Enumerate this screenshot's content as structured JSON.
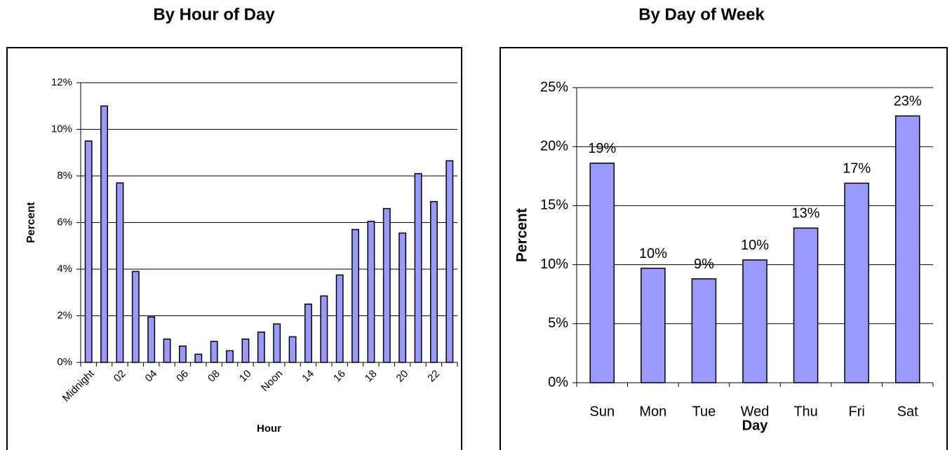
{
  "chart_data": [
    {
      "type": "bar",
      "title": "By Hour of Day",
      "x_label": "Hour",
      "y_label": "Percent",
      "categories": [
        "Midnight",
        null,
        "02",
        null,
        "04",
        null,
        "06",
        null,
        "08",
        null,
        "10",
        null,
        "Noon",
        null,
        "14",
        null,
        "16",
        null,
        "18",
        null,
        "20",
        null,
        "22",
        null
      ],
      "values": [
        9.5,
        11,
        7.7,
        3.9,
        1.95,
        1.0,
        0.7,
        0.35,
        0.9,
        0.5,
        1.0,
        1.3,
        1.65,
        1.1,
        2.5,
        2.85,
        3.75,
        5.7,
        6.05,
        6.6,
        5.55,
        8.1,
        6.9,
        8.65
      ],
      "color": "#9999ff",
      "ylim": [
        0,
        12
      ],
      "yticks": [
        {
          "value": 0,
          "label": "0%"
        },
        {
          "value": 2,
          "label": "2%"
        },
        {
          "value": 4,
          "label": "4%"
        },
        {
          "value": 6,
          "label": "6%"
        },
        {
          "value": 8,
          "label": "8%"
        },
        {
          "value": 10,
          "label": "10%"
        },
        {
          "value": 12,
          "label": "12%"
        }
      ],
      "grid": true
    },
    {
      "type": "bar",
      "title": "By Day of Week",
      "x_label": "Day",
      "y_label": "Percent",
      "categories": [
        "Sun",
        "Mon",
        "Tue",
        "Wed",
        "Thu",
        "Fri",
        "Sat"
      ],
      "values": [
        18.6,
        9.7,
        8.8,
        10.4,
        13.1,
        16.9,
        22.6
      ],
      "value_labels": [
        "19%",
        "10%",
        "9%",
        "10%",
        "13%",
        "17%",
        "23%"
      ],
      "color": "#9999ff",
      "ylim": [
        0,
        25
      ],
      "yticks": [
        {
          "value": 0,
          "label": "0%"
        },
        {
          "value": 5,
          "label": "5%"
        },
        {
          "value": 10,
          "label": "10%"
        },
        {
          "value": 15,
          "label": "15%"
        },
        {
          "value": 20,
          "label": "20%"
        },
        {
          "value": 25,
          "label": "25%"
        }
      ],
      "grid": true
    }
  ]
}
